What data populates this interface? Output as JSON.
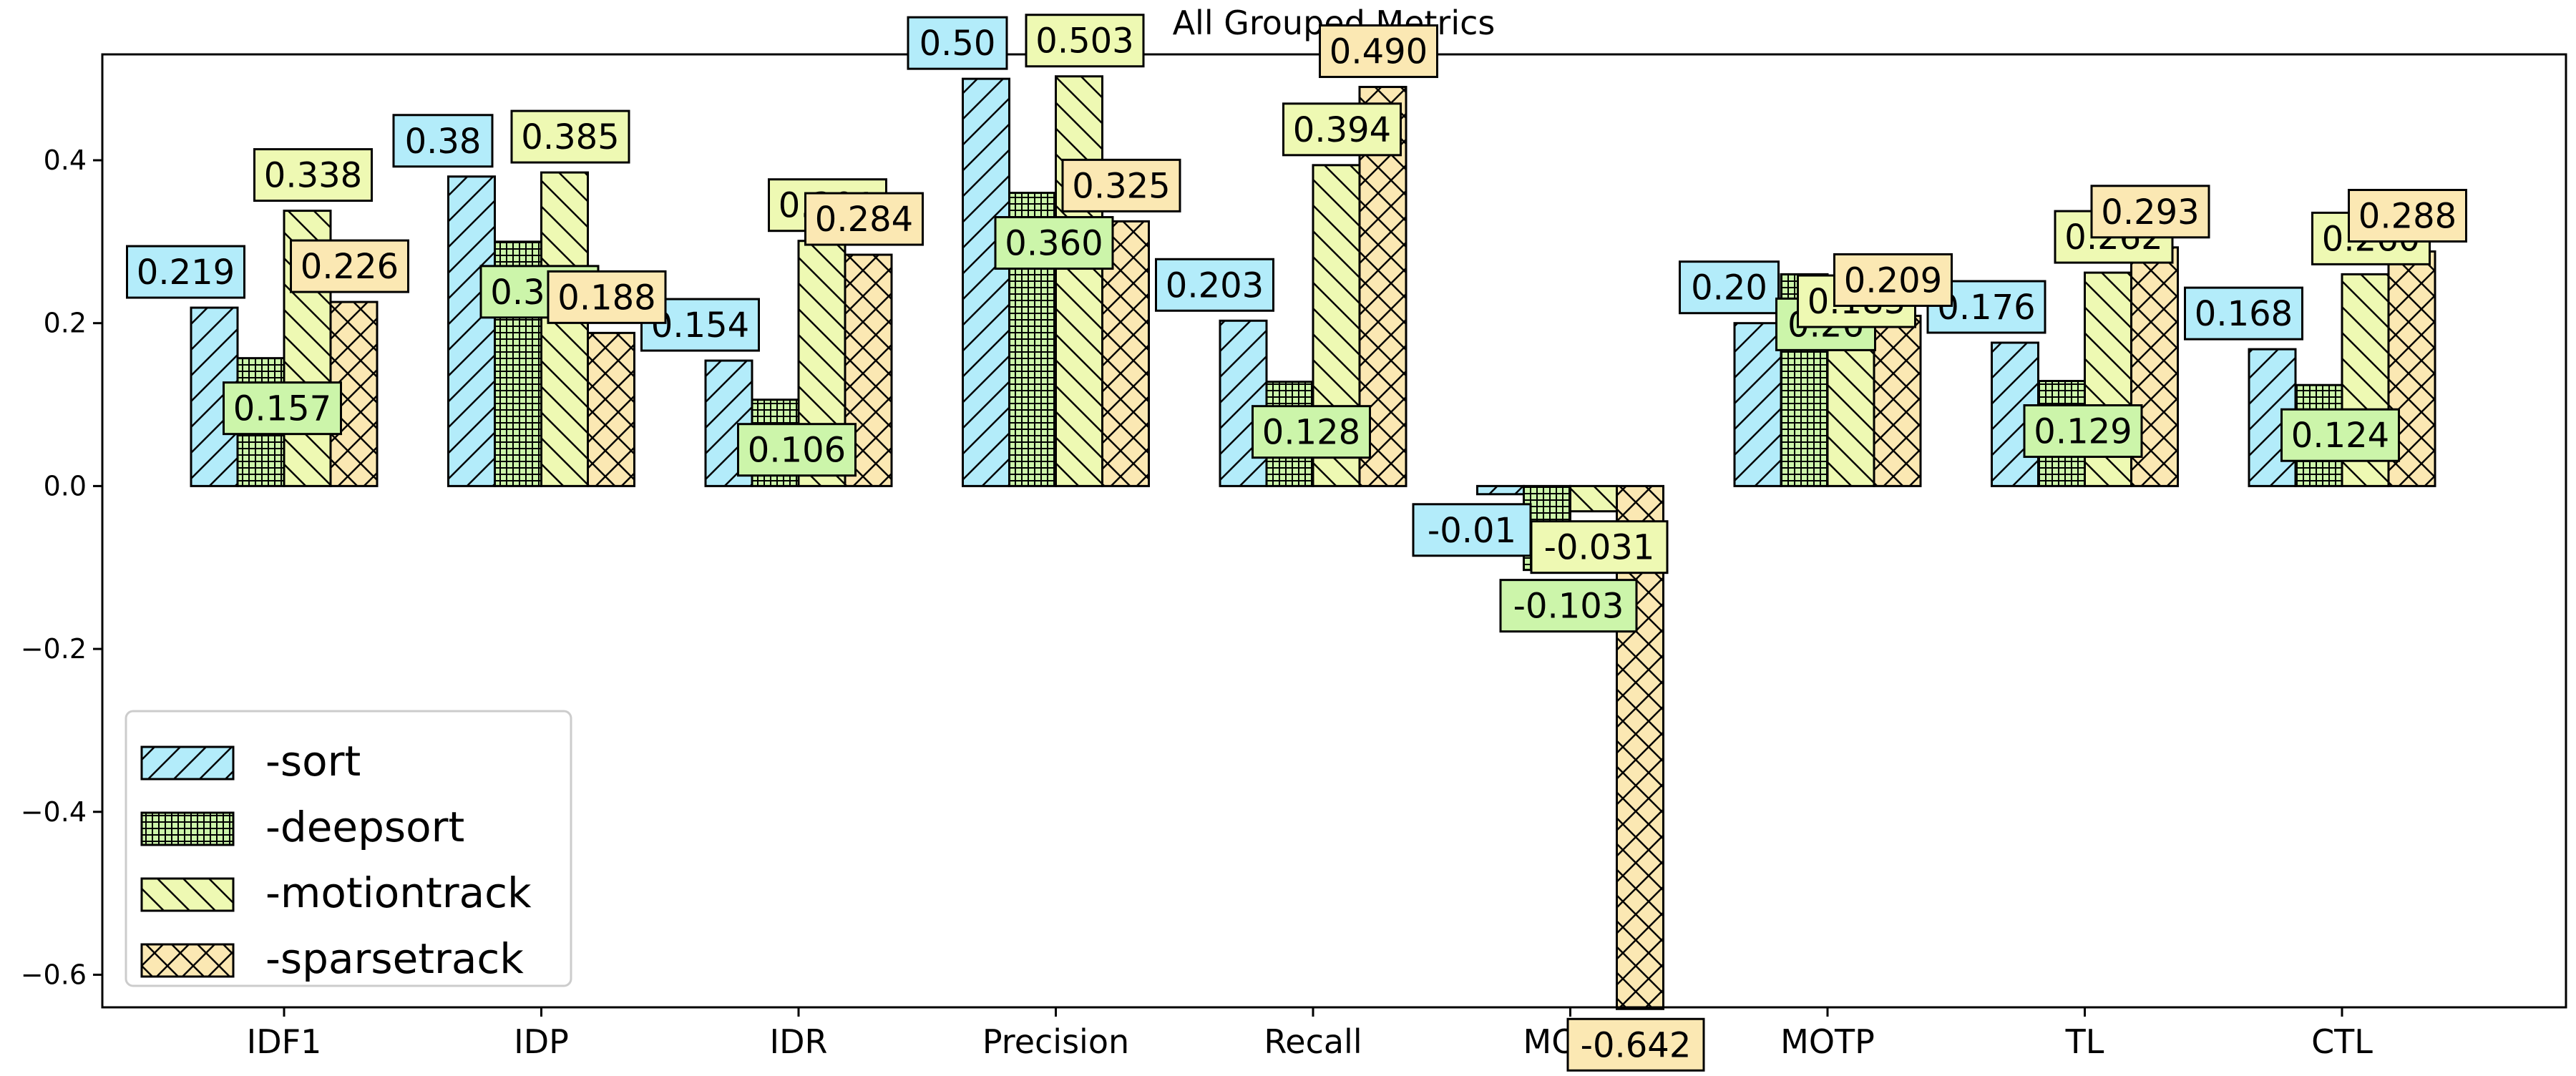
{
  "chart_data": {
    "type": "bar",
    "title": "All Grouped Metrics",
    "xlabel": "",
    "ylabel": "",
    "categories": [
      "IDF1",
      "IDP",
      "IDR",
      "Precision",
      "Recall",
      "MOTA",
      "MOTP",
      "TL",
      "CTL"
    ],
    "ylim": [
      -0.64,
      0.53
    ],
    "yticks": [
      -0.6,
      -0.4,
      -0.2,
      0.0,
      0.2,
      0.4
    ],
    "ytick_labels": [
      "−0.6",
      "−0.4",
      "−0.2",
      "0.0",
      "0.2",
      "0.4"
    ],
    "grid": false,
    "legend_position": "lower-left",
    "series": [
      {
        "name": "-sort",
        "color": "#b3ecfa",
        "hatch": "diagonal-forward",
        "values": [
          0.219,
          0.38,
          0.154,
          0.5,
          0.203,
          -0.01,
          0.2,
          0.176,
          0.168
        ],
        "labels": [
          "0.219",
          "0.38",
          "0.154",
          "0.50",
          "0.203",
          "-0.01",
          "0.20",
          "0.176",
          "0.168"
        ]
      },
      {
        "name": "-deepsort",
        "color": "#ccf5aa",
        "hatch": "grid",
        "values": [
          0.157,
          0.3,
          0.106,
          0.36,
          0.128,
          -0.103,
          0.26,
          0.129,
          0.124
        ],
        "labels": [
          "0.157",
          "0.300",
          "0.106",
          "0.360",
          "0.128",
          "-0.103",
          "0.26",
          "0.129",
          "0.124"
        ]
      },
      {
        "name": "-motiontrack",
        "color": "#eef9b3",
        "hatch": "diagonal-back",
        "values": [
          0.338,
          0.385,
          0.301,
          0.503,
          0.394,
          -0.031,
          0.183,
          0.262,
          0.26
        ],
        "labels": [
          "0.338",
          "0.385",
          "0.301",
          "0.503",
          "0.394",
          "-0.031",
          "0.183",
          "0.262",
          "0.260"
        ]
      },
      {
        "name": "-sparsetrack",
        "color": "#fbe8b3",
        "hatch": "cross",
        "values": [
          0.226,
          0.188,
          0.284,
          0.325,
          0.49,
          -0.642,
          0.209,
          0.293,
          0.288
        ],
        "labels": [
          "0.226",
          "0.188",
          "0.284",
          "0.325",
          "0.490",
          "-0.642",
          "0.209",
          "0.293",
          "0.288"
        ]
      }
    ]
  }
}
